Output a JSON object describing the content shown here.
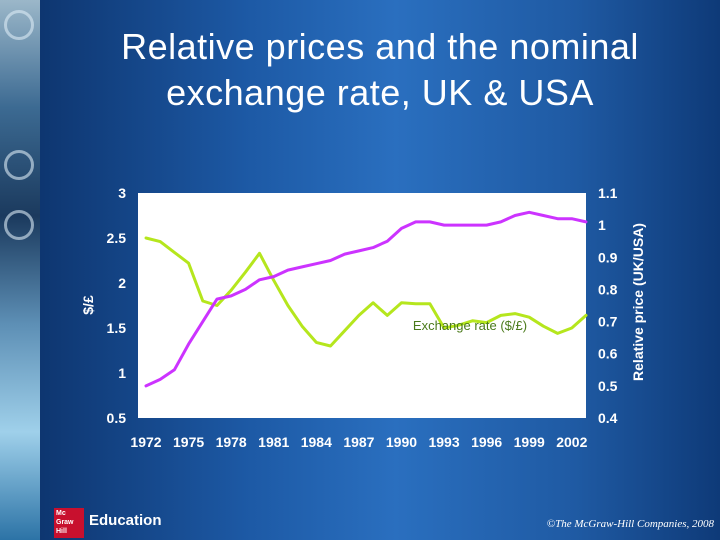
{
  "slide": {
    "title_line1": "Relative prices and the nominal",
    "title_line2": "exchange rate, UK & USA",
    "logo_text": "Mc Graw Hill",
    "logo_label": "Education",
    "copyright": "©The McGraw-Hill Companies, 2008"
  },
  "colors": {
    "relative_price": "#cc33ff",
    "exchange_rate": "#b5e61d",
    "plot_bg": "#ffffff"
  },
  "chart_data": {
    "type": "line",
    "x": [
      1972,
      1973,
      1974,
      1975,
      1976,
      1977,
      1978,
      1979,
      1980,
      1981,
      1982,
      1983,
      1984,
      1985,
      1986,
      1987,
      1988,
      1989,
      1990,
      1991,
      1992,
      1993,
      1994,
      1995,
      1996,
      1997,
      1998,
      1999,
      2000,
      2001,
      2002,
      2003
    ],
    "x_tick_labels": [
      "1972",
      "1975",
      "1978",
      "1981",
      "1984",
      "1987",
      "1990",
      "1993",
      "1996",
      "1999",
      "2002"
    ],
    "left_axis": {
      "label": "$/£",
      "ylim": [
        0.5,
        3
      ],
      "ticks": [
        "0.5",
        "1",
        "1.5",
        "2",
        "2.5",
        "3"
      ]
    },
    "right_axis": {
      "label": "Relative price (UK/USA)",
      "ylim": [
        0.4,
        1.1
      ],
      "ticks": [
        "0.4",
        "0.5",
        "0.6",
        "0.7",
        "0.8",
        "0.9",
        "1",
        "1.1"
      ]
    },
    "grid": false,
    "series": [
      {
        "name": "Exchange rate ($/£)",
        "axis": "left",
        "values": [
          2.5,
          2.46,
          2.34,
          2.22,
          1.8,
          1.75,
          1.92,
          2.12,
          2.33,
          2.03,
          1.75,
          1.52,
          1.34,
          1.3,
          1.47,
          1.64,
          1.78,
          1.64,
          1.78,
          1.77,
          1.77,
          1.5,
          1.53,
          1.58,
          1.56,
          1.64,
          1.66,
          1.62,
          1.52,
          1.44,
          1.5,
          1.64
        ]
      },
      {
        "name": "Relative price (UK/USA)",
        "axis": "right",
        "values": [
          0.5,
          0.52,
          0.55,
          0.63,
          0.7,
          0.77,
          0.78,
          0.8,
          0.83,
          0.84,
          0.86,
          0.87,
          0.88,
          0.89,
          0.91,
          0.92,
          0.93,
          0.95,
          0.99,
          1.01,
          1.01,
          1.0,
          1.0,
          1.0,
          1.0,
          1.01,
          1.03,
          1.04,
          1.03,
          1.02,
          1.02,
          1.01
        ]
      }
    ],
    "annotations": [
      {
        "text_line1": "Relative price",
        "text_line2": "(UK/USA)",
        "series": "Relative price (UK/USA)"
      },
      {
        "text": "Exchange rate ($/£)",
        "series": "Exchange rate ($/£)"
      }
    ]
  }
}
